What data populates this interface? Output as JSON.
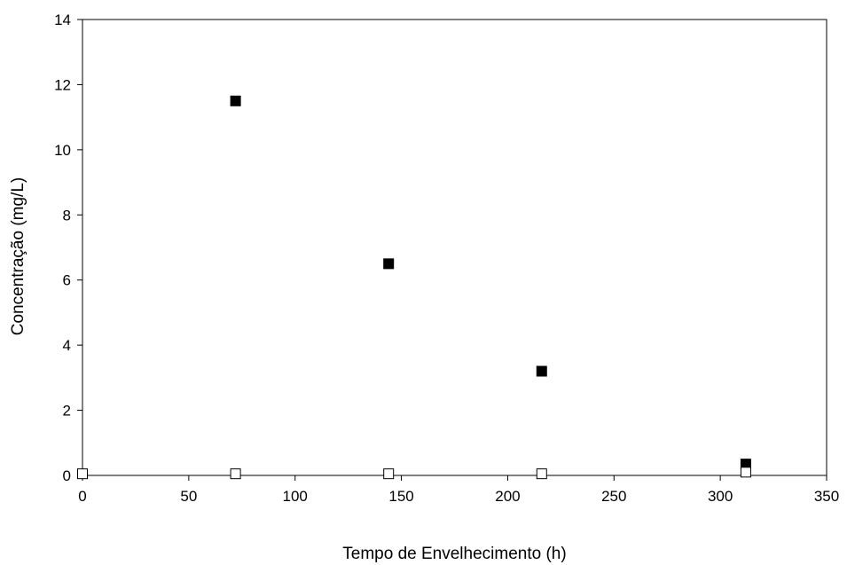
{
  "chart_data": {
    "type": "scatter",
    "title": "",
    "xlabel": "Tempo de Envelhecimento (h)",
    "ylabel": "Concentração (mg/L)",
    "xlim": [
      0,
      350
    ],
    "ylim": [
      0,
      14
    ],
    "x_ticks": [
      0,
      50,
      100,
      150,
      200,
      250,
      300,
      350
    ],
    "y_ticks": [
      0,
      2,
      4,
      6,
      8,
      10,
      12,
      14
    ],
    "grid": false,
    "legend": "none",
    "series": [
      {
        "marker": "filled-square",
        "color": "#000000",
        "points": [
          {
            "x": 72,
            "y": 11.5
          },
          {
            "x": 144,
            "y": 6.5
          },
          {
            "x": 216,
            "y": 3.2
          },
          {
            "x": 312,
            "y": 0.35
          }
        ]
      },
      {
        "marker": "open-square",
        "color": "#000000",
        "points": [
          {
            "x": 0,
            "y": 0.05
          },
          {
            "x": 72,
            "y": 0.05
          },
          {
            "x": 144,
            "y": 0.05
          },
          {
            "x": 216,
            "y": 0.05
          },
          {
            "x": 312,
            "y": 0.1
          }
        ]
      }
    ]
  }
}
